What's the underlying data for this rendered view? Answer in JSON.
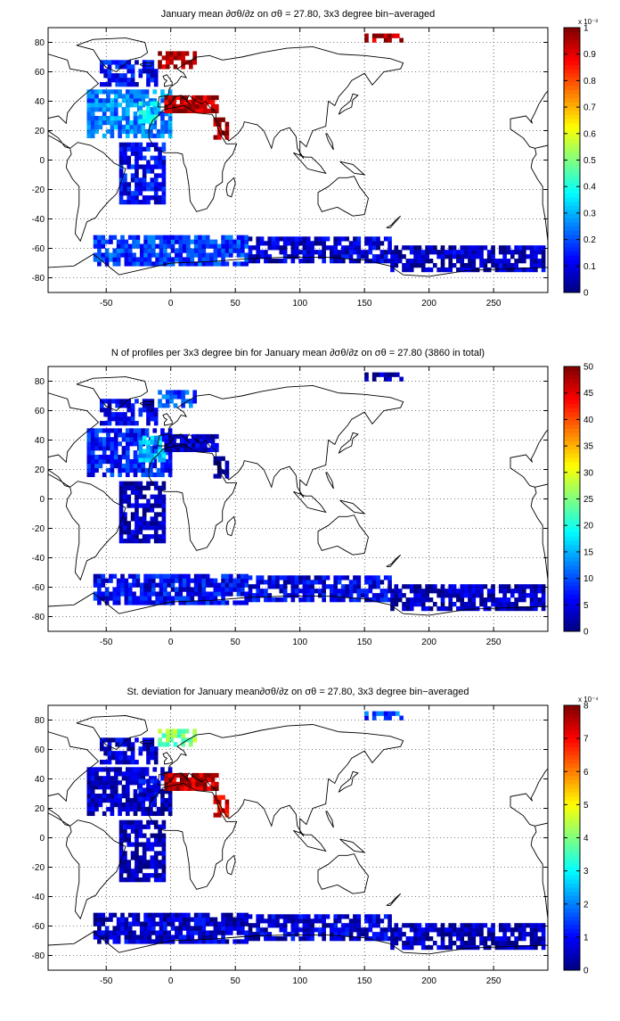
{
  "chart_data": [
    {
      "type": "heatmap",
      "title": "January mean ∂σθ/∂z on σθ = 27.80, 3x3 degree bin−averaged",
      "xlim": [
        -95,
        292
      ],
      "ylim": [
        -90,
        90
      ],
      "xticks": [
        -50,
        0,
        50,
        100,
        150,
        200,
        250
      ],
      "yticks": [
        -80,
        -60,
        -40,
        -20,
        0,
        20,
        40,
        60,
        80
      ],
      "grid": true,
      "colorbar": {
        "min": 0,
        "max": 1,
        "ticks": [
          0,
          0.1,
          0.2,
          0.3,
          0.4,
          0.5,
          0.6,
          0.7,
          0.8,
          0.9,
          1
        ],
        "tick_labels": [
          "0",
          "0.1",
          "0.2",
          "0.3",
          "0.4",
          "0.5",
          "0.6",
          "0.7",
          "0.8",
          "0.9",
          "1"
        ],
        "exponent": "x 10⁻³"
      },
      "regions": [
        {
          "name": "north-atlantic-subtropical",
          "lon": [
            -65,
            0
          ],
          "lat": [
            15,
            48
          ],
          "level": 0.25
        },
        {
          "name": "north-atlantic-core",
          "lon": [
            -25,
            -10
          ],
          "lat": [
            25,
            40
          ],
          "level": 0.35
        },
        {
          "name": "labrador-irminger",
          "lon": [
            -55,
            -10
          ],
          "lat": [
            50,
            68
          ],
          "level": 0.12
        },
        {
          "name": "nordic-seas",
          "lon": [
            -10,
            20
          ],
          "lat": [
            62,
            72
          ],
          "level": 0.97
        },
        {
          "name": "arctic",
          "lon": [
            150,
            180
          ],
          "lat": [
            80,
            86
          ],
          "level": 0.95
        },
        {
          "name": "mediterranean",
          "lon": [
            -5,
            35
          ],
          "lat": [
            32,
            42
          ],
          "level": 0.95
        },
        {
          "name": "red-sea",
          "lon": [
            33,
            43
          ],
          "lat": [
            14,
            28
          ],
          "level": 0.95
        },
        {
          "name": "south-atlantic",
          "lon": [
            -40,
            -5
          ],
          "lat": [
            -30,
            10
          ],
          "level": 0.12
        },
        {
          "name": "southern-ocean-atlantic",
          "lon": [
            -60,
            60
          ],
          "lat": [
            -72,
            -52
          ],
          "level": 0.18
        },
        {
          "name": "southern-ocean-indopacific",
          "lon": [
            60,
            170
          ],
          "lat": [
            -70,
            -52
          ],
          "level": 0.08
        },
        {
          "name": "southern-ocean-pacific",
          "lon": [
            170,
            290
          ],
          "lat": [
            -76,
            -60
          ],
          "level": 0.06
        }
      ]
    },
    {
      "type": "heatmap",
      "title": "N of profiles per 3x3 degree bin for January mean ∂σθ/∂z on σθ = 27.80 (3860 in total)",
      "xlim": [
        -95,
        292
      ],
      "ylim": [
        -90,
        90
      ],
      "xticks": [
        -50,
        0,
        50,
        100,
        150,
        200,
        250
      ],
      "yticks": [
        -80,
        -60,
        -40,
        -20,
        0,
        20,
        40,
        60,
        80
      ],
      "grid": true,
      "colorbar": {
        "min": 0,
        "max": 50,
        "ticks": [
          0,
          5,
          10,
          15,
          20,
          25,
          30,
          35,
          40,
          45,
          50
        ],
        "tick_labels": [
          "0",
          "5",
          "10",
          "15",
          "20",
          "25",
          "30",
          "35",
          "40",
          "45",
          "50"
        ],
        "exponent": ""
      },
      "regions": [
        {
          "name": "north-atlantic-subtropical",
          "lon": [
            -65,
            0
          ],
          "lat": [
            15,
            48
          ],
          "level": 0.14
        },
        {
          "name": "north-atlantic-core",
          "lon": [
            -25,
            -5
          ],
          "lat": [
            25,
            42
          ],
          "level": 0.3
        },
        {
          "name": "labrador-irminger",
          "lon": [
            -55,
            -10
          ],
          "lat": [
            50,
            68
          ],
          "level": 0.1
        },
        {
          "name": "nordic-seas",
          "lon": [
            -10,
            20
          ],
          "lat": [
            62,
            72
          ],
          "level": 0.2
        },
        {
          "name": "arctic",
          "lon": [
            150,
            180
          ],
          "lat": [
            80,
            86
          ],
          "level": 0.05
        },
        {
          "name": "mediterranean",
          "lon": [
            -5,
            35
          ],
          "lat": [
            32,
            42
          ],
          "level": 0.06
        },
        {
          "name": "red-sea",
          "lon": [
            33,
            43
          ],
          "lat": [
            14,
            28
          ],
          "level": 0.04
        },
        {
          "name": "south-atlantic",
          "lon": [
            -40,
            -5
          ],
          "lat": [
            -30,
            10
          ],
          "level": 0.05
        },
        {
          "name": "southern-ocean-atlantic",
          "lon": [
            -60,
            60
          ],
          "lat": [
            -72,
            -52
          ],
          "level": 0.12
        },
        {
          "name": "southern-ocean-indopacific",
          "lon": [
            60,
            170
          ],
          "lat": [
            -70,
            -52
          ],
          "level": 0.1
        },
        {
          "name": "southern-ocean-pacific",
          "lon": [
            170,
            290
          ],
          "lat": [
            -76,
            -60
          ],
          "level": 0.05
        }
      ]
    },
    {
      "type": "heatmap",
      "title": "St. deviation for January mean∂σθ/∂z on σθ = 27.80, 3x3 degree bin−averaged",
      "xlim": [
        -95,
        292
      ],
      "ylim": [
        -90,
        90
      ],
      "xticks": [
        -50,
        0,
        50,
        100,
        150,
        200,
        250
      ],
      "yticks": [
        -80,
        -60,
        -40,
        -20,
        0,
        20,
        40,
        60,
        80
      ],
      "grid": true,
      "colorbar": {
        "min": 0,
        "max": 8,
        "ticks": [
          0,
          1,
          2,
          3,
          4,
          5,
          6,
          7,
          8
        ],
        "tick_labels": [
          "0",
          "1",
          "2",
          "3",
          "4",
          "5",
          "6",
          "7",
          "8"
        ],
        "exponent": "x 10⁻⁴"
      },
      "regions": [
        {
          "name": "north-atlantic-subtropical",
          "lon": [
            -65,
            0
          ],
          "lat": [
            15,
            48
          ],
          "level": 0.06
        },
        {
          "name": "north-atlantic-core",
          "lon": [
            -25,
            -10
          ],
          "lat": [
            25,
            40
          ],
          "level": 0.1
        },
        {
          "name": "labrador-irminger",
          "lon": [
            -55,
            -10
          ],
          "lat": [
            50,
            68
          ],
          "level": 0.07
        },
        {
          "name": "nordic-seas",
          "lon": [
            -10,
            20
          ],
          "lat": [
            62,
            72
          ],
          "level": 0.5
        },
        {
          "name": "arctic",
          "lon": [
            150,
            180
          ],
          "lat": [
            80,
            86
          ],
          "level": 0.2
        },
        {
          "name": "mediterranean",
          "lon": [
            -5,
            35
          ],
          "lat": [
            32,
            42
          ],
          "level": 0.95
        },
        {
          "name": "red-sea",
          "lon": [
            33,
            43
          ],
          "lat": [
            14,
            28
          ],
          "level": 0.9
        },
        {
          "name": "south-atlantic",
          "lon": [
            -40,
            -5
          ],
          "lat": [
            -30,
            10
          ],
          "level": 0.05
        },
        {
          "name": "southern-ocean-atlantic",
          "lon": [
            -60,
            60
          ],
          "lat": [
            -72,
            -52
          ],
          "level": 0.07
        },
        {
          "name": "southern-ocean-indopacific",
          "lon": [
            60,
            170
          ],
          "lat": [
            -70,
            -52
          ],
          "level": 0.08
        },
        {
          "name": "southern-ocean-pacific",
          "lon": [
            170,
            290
          ],
          "lat": [
            -76,
            -60
          ],
          "level": 0.05
        }
      ]
    }
  ]
}
